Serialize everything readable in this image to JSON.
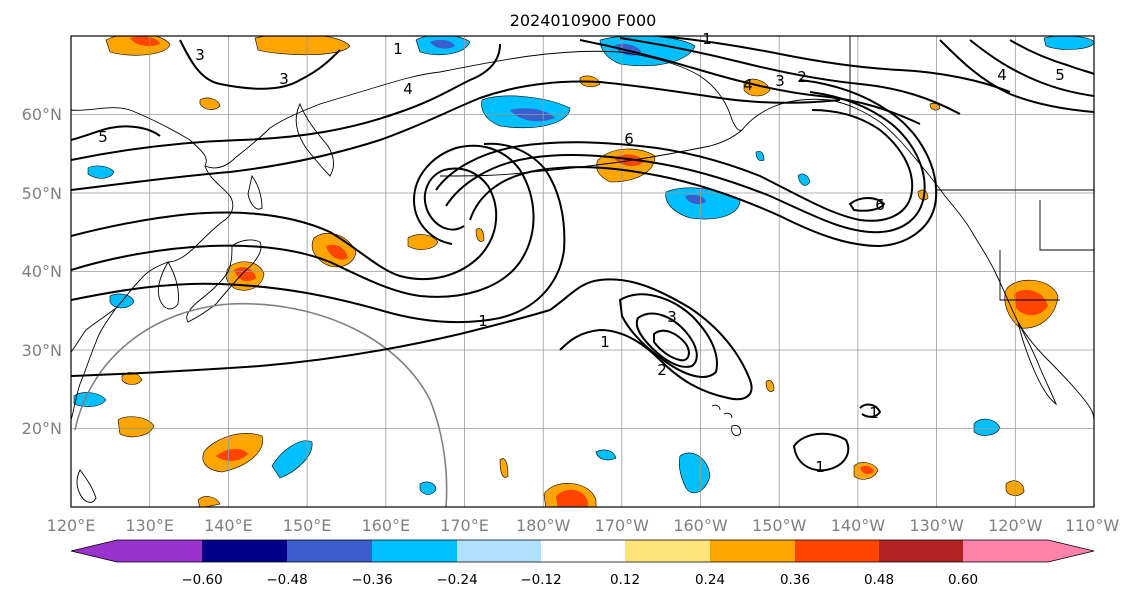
{
  "title": "2024010900 F000",
  "lon_ticks": [
    "120°E",
    "130°E",
    "140°E",
    "150°E",
    "160°E",
    "170°E",
    "180°W",
    "170°W",
    "160°W",
    "150°W",
    "140°W",
    "130°W",
    "120°W",
    "110°W"
  ],
  "lat_ticks": [
    "60°N",
    "50°N",
    "40°N",
    "30°N",
    "20°N"
  ],
  "extent": {
    "lon_min": 120,
    "lon_max": 250,
    "lat_min": 10,
    "lat_max": 70
  },
  "contour_labels": [
    "1",
    "1",
    "1",
    "1",
    "2",
    "2",
    "3",
    "3",
    "3",
    "3",
    "4",
    "4",
    "4",
    "5",
    "5",
    "6",
    "6",
    "1",
    "1"
  ],
  "colorbar": {
    "ticks": [
      "−0.60",
      "−0.48",
      "−0.36",
      "−0.24",
      "−0.12",
      "0.12",
      "0.24",
      "0.36",
      "0.48",
      "0.60"
    ],
    "colors": [
      "#9932cc",
      "#00008b",
      "#3a5fcd",
      "#00bfff",
      "#b0e2ff",
      "#ffffff",
      "#ffe47a",
      "#ffa500",
      "#ff4500",
      "#b22222",
      "#ff82ab"
    ]
  }
}
